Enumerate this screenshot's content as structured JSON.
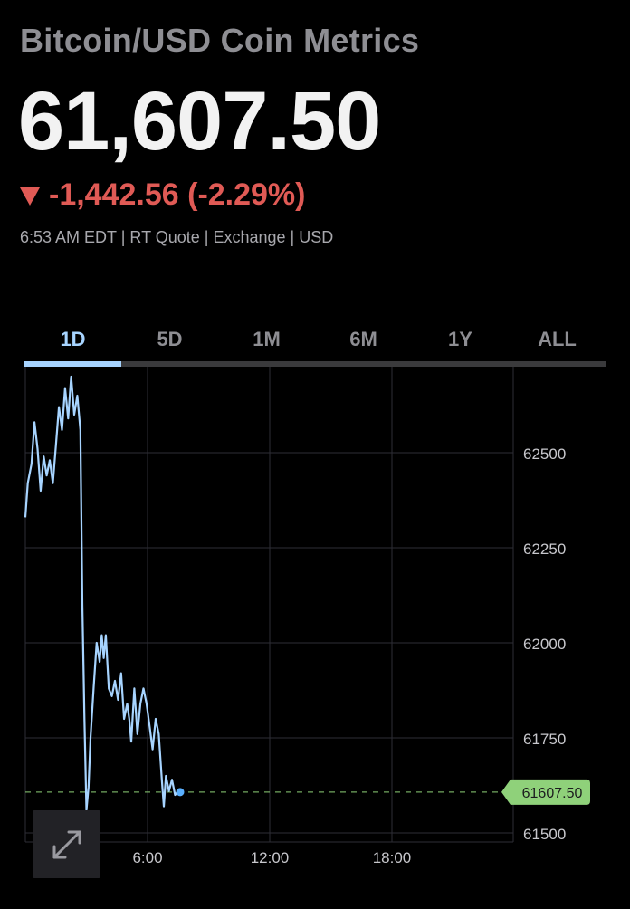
{
  "header": {
    "title": "Bitcoin/USD Coin Metrics",
    "price": "61,607.50",
    "change": "-1,442.56 (-2.29%)",
    "meta": "6:53 AM EDT | RT Quote | Exchange | USD"
  },
  "tabs": [
    "1D",
    "5D",
    "1M",
    "6M",
    "1Y",
    "ALL"
  ],
  "active_tab": "1D",
  "colors": {
    "line": "#a7d4ff",
    "down": "#e05a55",
    "current_badge": "#8fd17a",
    "grid": "#2e2e36"
  },
  "icons": {
    "expand": "expand-arrows-icon",
    "down": "down-triangle-icon"
  },
  "chart_data": {
    "type": "line",
    "x_ticks": [
      "6:00",
      "12:00",
      "18:00"
    ],
    "y_ticks": [
      62500,
      62250,
      62000,
      61750,
      61500
    ],
    "ylim": [
      61500,
      62700
    ],
    "xlim_hours": [
      0,
      24
    ],
    "current_value": 61607.5,
    "current_label": "61607.50",
    "series": [
      {
        "values": [
          [
            0.0,
            62330
          ],
          [
            0.12,
            62420
          ],
          [
            0.3,
            62470
          ],
          [
            0.45,
            62580
          ],
          [
            0.6,
            62510
          ],
          [
            0.75,
            62400
          ],
          [
            0.9,
            62490
          ],
          [
            1.05,
            62440
          ],
          [
            1.2,
            62480
          ],
          [
            1.35,
            62420
          ],
          [
            1.5,
            62520
          ],
          [
            1.65,
            62620
          ],
          [
            1.8,
            62560
          ],
          [
            1.95,
            62670
          ],
          [
            2.1,
            62590
          ],
          [
            2.25,
            62700
          ],
          [
            2.4,
            62600
          ],
          [
            2.55,
            62650
          ],
          [
            2.7,
            62560
          ],
          [
            2.8,
            62100
          ],
          [
            2.9,
            61800
          ],
          [
            3.0,
            61560
          ],
          [
            3.1,
            61620
          ],
          [
            3.2,
            61750
          ],
          [
            3.35,
            61880
          ],
          [
            3.5,
            62000
          ],
          [
            3.65,
            61950
          ],
          [
            3.75,
            62020
          ],
          [
            3.85,
            61960
          ],
          [
            3.95,
            62020
          ],
          [
            4.1,
            61880
          ],
          [
            4.25,
            61860
          ],
          [
            4.4,
            61900
          ],
          [
            4.55,
            61850
          ],
          [
            4.7,
            61920
          ],
          [
            4.85,
            61800
          ],
          [
            5.0,
            61840
          ],
          [
            5.1,
            61800
          ],
          [
            5.2,
            61740
          ],
          [
            5.35,
            61880
          ],
          [
            5.5,
            61760
          ],
          [
            5.65,
            61840
          ],
          [
            5.8,
            61880
          ],
          [
            5.95,
            61840
          ],
          [
            6.1,
            61780
          ],
          [
            6.25,
            61720
          ],
          [
            6.4,
            61800
          ],
          [
            6.55,
            61760
          ],
          [
            6.7,
            61640
          ],
          [
            6.8,
            61570
          ],
          [
            6.9,
            61650
          ],
          [
            7.05,
            61610
          ],
          [
            7.2,
            61640
          ],
          [
            7.35,
            61600
          ],
          [
            7.5,
            61610
          ],
          [
            7.6,
            61607.5
          ]
        ]
      }
    ]
  }
}
